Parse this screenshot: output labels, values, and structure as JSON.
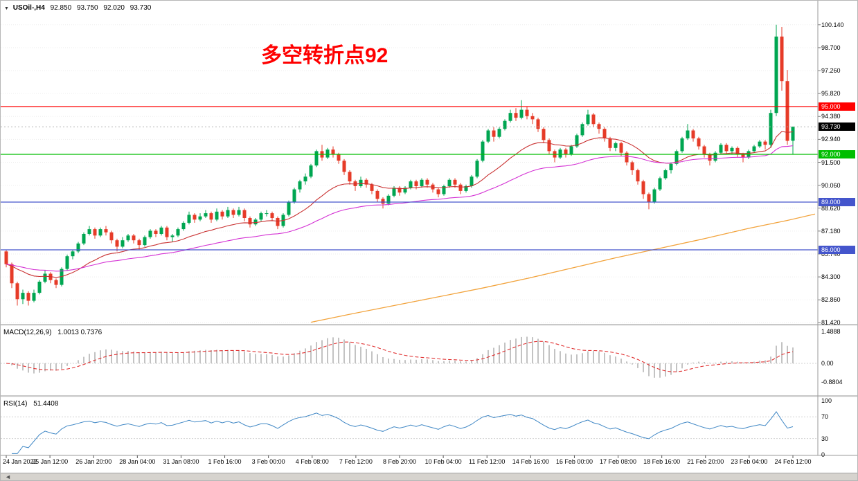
{
  "window": {
    "collapse_icon": "▼",
    "scroll_icon": "◄",
    "symbol_timeframe": "USOil-,H4",
    "open": "92.850",
    "high": "93.750",
    "low": "92.020",
    "close": "93.730"
  },
  "annotation": {
    "text": "多空转折点92",
    "color": "#FF0000"
  },
  "colors": {
    "up_candle": "#00A651",
    "down_candle": "#E63B28",
    "ma_fast": "#C93030",
    "ma_mid": "#D431D4",
    "ma_slow": "#F2A33C",
    "macd_hist": "#B4B4B4",
    "macd_signal": "#E03030",
    "rsi_line": "#3F87C5",
    "current_badge_bg": "#000000",
    "grid": "#EDEDED"
  },
  "chart_data": [
    {
      "type": "candlestick",
      "symbol": "USOil-",
      "timeframe": "H4",
      "y_ticks": [
        "100.140",
        "98.700",
        "97.260",
        "95.820",
        "94.380",
        "92.940",
        "91.500",
        "90.060",
        "88.620",
        "87.180",
        "85.740",
        "84.300",
        "82.860",
        "81.420"
      ],
      "x_labels": [
        "24 Jan 2022",
        "25 Jan 12:00",
        "26 Jan 20:00",
        "28 Jan 04:00",
        "31 Jan 08:00",
        "1 Feb 16:00",
        "3 Feb 00:00",
        "4 Feb 08:00",
        "7 Feb 12:00",
        "8 Feb 20:00",
        "10 Feb 04:00",
        "11 Feb 12:00",
        "14 Feb 16:00",
        "16 Feb 00:00",
        "17 Feb 08:00",
        "18 Feb 16:00",
        "21 Feb 20:00",
        "23 Feb 04:00",
        "24 Feb 12:00"
      ],
      "horizontal_lines": [
        {
          "price": 95.0,
          "label": "95.000",
          "color": "#FF0000"
        },
        {
          "price": 92.0,
          "label": "92.000",
          "color": "#00BE00"
        },
        {
          "price": 89.0,
          "label": "89.000",
          "color": "#4455CC"
        },
        {
          "price": 86.0,
          "label": "86.000",
          "color": "#4455CC"
        }
      ],
      "current_price": {
        "value": 93.73,
        "label": "93.730"
      },
      "moving_averages": [
        {
          "kind": "ema",
          "period": 20,
          "color_key": "ma_fast"
        },
        {
          "kind": "ema",
          "period": 50,
          "color_key": "ma_mid"
        }
      ],
      "trend_ma_points": [
        [
          55,
          81.45
        ],
        [
          62,
          81.95
        ],
        [
          70,
          82.5
        ],
        [
          78,
          83.05
        ],
        [
          86,
          83.6
        ],
        [
          94,
          84.2
        ],
        [
          102,
          84.85
        ],
        [
          110,
          85.5
        ],
        [
          118,
          86.1
        ],
        [
          126,
          86.7
        ],
        [
          134,
          87.35
        ],
        [
          141,
          87.85
        ],
        [
          146,
          88.25
        ]
      ],
      "candles": [
        [
          85.9,
          86.0,
          84.9,
          85.1
        ],
        [
          85.1,
          85.2,
          83.6,
          83.9
        ],
        [
          83.9,
          84.0,
          82.5,
          82.9
        ],
        [
          82.9,
          83.5,
          82.6,
          83.3
        ],
        [
          83.3,
          83.4,
          82.5,
          82.8
        ],
        [
          82.8,
          83.5,
          82.7,
          83.3
        ],
        [
          83.3,
          84.1,
          83.2,
          84.0
        ],
        [
          84.0,
          84.7,
          83.9,
          84.5
        ],
        [
          84.5,
          84.6,
          83.9,
          84.1
        ],
        [
          84.1,
          84.2,
          83.6,
          83.8
        ],
        [
          83.8,
          84.9,
          83.7,
          84.8
        ],
        [
          84.8,
          85.7,
          84.7,
          85.6
        ],
        [
          85.6,
          86.0,
          85.4,
          85.9
        ],
        [
          85.9,
          86.5,
          85.8,
          86.4
        ],
        [
          86.4,
          87.1,
          86.3,
          87.0
        ],
        [
          87.0,
          87.5,
          86.9,
          87.3
        ],
        [
          87.3,
          87.4,
          86.7,
          86.9
        ],
        [
          86.9,
          87.4,
          86.8,
          87.3
        ],
        [
          87.3,
          87.5,
          86.9,
          87.1
        ],
        [
          87.1,
          87.2,
          86.4,
          86.6
        ],
        [
          86.6,
          86.7,
          85.9,
          86.2
        ],
        [
          86.2,
          86.8,
          86.1,
          86.6
        ],
        [
          86.6,
          87.0,
          86.5,
          86.9
        ],
        [
          86.9,
          87.0,
          86.4,
          86.6
        ],
        [
          86.6,
          86.7,
          86.0,
          86.3
        ],
        [
          86.3,
          86.9,
          86.2,
          86.8
        ],
        [
          86.8,
          87.3,
          86.7,
          87.2
        ],
        [
          87.2,
          87.3,
          86.8,
          87.0
        ],
        [
          87.0,
          87.5,
          86.9,
          87.4
        ],
        [
          87.4,
          87.5,
          86.6,
          86.8
        ],
        [
          86.8,
          87.0,
          86.5,
          86.9
        ],
        [
          86.9,
          87.4,
          86.8,
          87.3
        ],
        [
          87.3,
          87.8,
          87.2,
          87.7
        ],
        [
          87.7,
          88.4,
          87.6,
          88.2
        ],
        [
          88.2,
          88.3,
          87.7,
          87.9
        ],
        [
          87.9,
          88.3,
          87.8,
          88.1
        ],
        [
          88.1,
          88.5,
          88.0,
          88.3
        ],
        [
          88.3,
          88.4,
          87.7,
          87.9
        ],
        [
          87.9,
          88.6,
          87.8,
          88.4
        ],
        [
          88.4,
          88.5,
          87.9,
          88.1
        ],
        [
          88.1,
          88.7,
          88.0,
          88.5
        ],
        [
          88.5,
          88.6,
          88.0,
          88.2
        ],
        [
          88.2,
          88.7,
          88.1,
          88.5
        ],
        [
          88.5,
          88.6,
          87.8,
          88.0
        ],
        [
          88.0,
          88.1,
          87.4,
          87.6
        ],
        [
          87.6,
          88.0,
          87.5,
          87.9
        ],
        [
          87.9,
          88.4,
          87.8,
          88.3
        ],
        [
          88.3,
          88.5,
          88.1,
          88.3
        ],
        [
          88.3,
          88.4,
          87.8,
          88.0
        ],
        [
          88.0,
          88.1,
          87.3,
          87.5
        ],
        [
          87.5,
          88.3,
          87.4,
          88.2
        ],
        [
          88.2,
          89.1,
          88.1,
          89.0
        ],
        [
          89.0,
          89.9,
          88.9,
          89.8
        ],
        [
          89.8,
          90.4,
          89.6,
          90.3
        ],
        [
          90.3,
          90.8,
          90.1,
          90.6
        ],
        [
          90.6,
          91.4,
          90.5,
          91.3
        ],
        [
          91.3,
          92.3,
          91.2,
          92.2
        ],
        [
          92.2,
          92.6,
          91.6,
          91.8
        ],
        [
          91.8,
          92.4,
          91.7,
          92.3
        ],
        [
          92.3,
          92.5,
          91.8,
          92.0
        ],
        [
          92.0,
          92.1,
          91.4,
          91.6
        ],
        [
          91.6,
          91.7,
          90.7,
          90.9
        ],
        [
          90.9,
          91.0,
          90.1,
          90.3
        ],
        [
          90.3,
          90.4,
          89.7,
          90.0
        ],
        [
          90.0,
          90.6,
          89.9,
          90.4
        ],
        [
          90.4,
          90.5,
          89.9,
          90.1
        ],
        [
          90.1,
          90.2,
          89.5,
          89.7
        ],
        [
          89.7,
          89.8,
          89.0,
          89.2
        ],
        [
          89.2,
          89.3,
          88.6,
          88.9
        ],
        [
          88.9,
          89.5,
          88.8,
          89.4
        ],
        [
          89.4,
          90.0,
          89.3,
          89.9
        ],
        [
          89.9,
          90.0,
          89.4,
          89.6
        ],
        [
          89.6,
          90.0,
          89.5,
          89.9
        ],
        [
          89.9,
          90.4,
          89.8,
          90.3
        ],
        [
          90.3,
          90.4,
          89.8,
          90.0
        ],
        [
          90.0,
          90.5,
          89.9,
          90.4
        ],
        [
          90.4,
          90.5,
          89.9,
          90.1
        ],
        [
          90.1,
          90.2,
          89.6,
          89.8
        ],
        [
          89.8,
          89.9,
          89.3,
          89.5
        ],
        [
          89.5,
          90.1,
          89.4,
          90.0
        ],
        [
          90.0,
          90.5,
          89.9,
          90.4
        ],
        [
          90.4,
          90.5,
          89.9,
          90.1
        ],
        [
          90.1,
          90.2,
          89.5,
          89.7
        ],
        [
          89.7,
          90.1,
          89.6,
          90.0
        ],
        [
          90.0,
          90.7,
          89.9,
          90.6
        ],
        [
          90.6,
          91.7,
          90.5,
          91.6
        ],
        [
          91.6,
          92.9,
          91.5,
          92.8
        ],
        [
          92.8,
          93.6,
          92.7,
          93.5
        ],
        [
          93.5,
          93.7,
          92.8,
          93.1
        ],
        [
          93.1,
          93.7,
          93.0,
          93.6
        ],
        [
          93.6,
          94.2,
          93.5,
          94.1
        ],
        [
          94.1,
          94.8,
          94.0,
          94.6
        ],
        [
          94.6,
          94.9,
          94.1,
          94.3
        ],
        [
          94.3,
          95.4,
          94.2,
          94.8
        ],
        [
          94.8,
          95.0,
          94.2,
          94.4
        ],
        [
          94.4,
          94.6,
          93.9,
          94.2
        ],
        [
          94.2,
          94.3,
          93.4,
          93.6
        ],
        [
          93.6,
          93.7,
          92.7,
          92.9
        ],
        [
          92.9,
          93.0,
          92.0,
          92.2
        ],
        [
          92.2,
          92.3,
          91.5,
          91.8
        ],
        [
          91.8,
          92.4,
          91.7,
          92.3
        ],
        [
          92.3,
          92.4,
          91.8,
          92.0
        ],
        [
          92.0,
          92.6,
          91.9,
          92.5
        ],
        [
          92.5,
          93.3,
          92.4,
          93.2
        ],
        [
          93.2,
          94.0,
          93.1,
          93.9
        ],
        [
          93.9,
          94.8,
          93.8,
          94.5
        ],
        [
          94.5,
          94.6,
          93.7,
          93.9
        ],
        [
          93.9,
          94.0,
          93.3,
          93.6
        ],
        [
          93.6,
          93.7,
          92.8,
          93.0
        ],
        [
          93.0,
          93.1,
          92.2,
          92.4
        ],
        [
          92.4,
          92.8,
          92.2,
          92.7
        ],
        [
          92.7,
          92.8,
          91.9,
          92.1
        ],
        [
          92.1,
          92.2,
          91.3,
          91.5
        ],
        [
          91.5,
          91.6,
          90.7,
          91.0
        ],
        [
          91.0,
          91.1,
          90.1,
          90.3
        ],
        [
          90.3,
          90.4,
          89.2,
          89.5
        ],
        [
          89.5,
          89.6,
          88.55,
          89.0
        ],
        [
          89.0,
          89.9,
          88.9,
          89.8
        ],
        [
          89.8,
          90.6,
          89.7,
          90.5
        ],
        [
          90.5,
          91.1,
          90.4,
          91.0
        ],
        [
          91.0,
          91.5,
          90.8,
          91.4
        ],
        [
          91.4,
          92.3,
          91.3,
          92.2
        ],
        [
          92.2,
          93.1,
          92.1,
          93.0
        ],
        [
          93.0,
          93.9,
          92.9,
          93.5
        ],
        [
          93.5,
          93.6,
          92.8,
          93.0
        ],
        [
          93.0,
          93.1,
          92.3,
          92.5
        ],
        [
          92.5,
          92.6,
          91.8,
          92.0
        ],
        [
          92.0,
          92.1,
          91.3,
          91.6
        ],
        [
          91.6,
          92.2,
          91.5,
          92.1
        ],
        [
          92.1,
          92.7,
          92.0,
          92.6
        ],
        [
          92.6,
          92.7,
          92.0,
          92.2
        ],
        [
          92.2,
          92.5,
          92.0,
          92.4
        ],
        [
          92.4,
          92.5,
          91.8,
          92.0
        ],
        [
          92.0,
          92.1,
          91.5,
          91.8
        ],
        [
          91.8,
          92.3,
          91.7,
          92.2
        ],
        [
          92.2,
          92.6,
          92.1,
          92.5
        ],
        [
          92.5,
          92.9,
          92.4,
          92.8
        ],
        [
          92.8,
          92.9,
          92.3,
          92.6
        ],
        [
          92.6,
          94.8,
          92.4,
          94.6
        ],
        [
          94.6,
          100.14,
          94.4,
          99.4
        ],
        [
          99.4,
          100.0,
          96.0,
          96.6
        ],
        [
          96.6,
          97.3,
          92.6,
          92.85
        ],
        [
          92.85,
          93.75,
          92.02,
          93.73
        ]
      ]
    },
    {
      "type": "bar",
      "name": "MACD",
      "label": "MACD(12,26,9)",
      "values_text": "1.0013 0.7376",
      "scale_labels": [
        "1.4888",
        "0.00",
        "-0.8804"
      ],
      "scale_values": [
        1.4888,
        0,
        -0.8804
      ],
      "fast": 12,
      "slow": 26,
      "signal": 9
    },
    {
      "type": "line",
      "name": "RSI",
      "label": "RSI(14)",
      "values_text": "51.4408",
      "scale_labels": [
        "100",
        "70",
        "30",
        "0"
      ],
      "scale_values": [
        100,
        70,
        30,
        0
      ],
      "period": 14,
      "levels": [
        70,
        30
      ]
    }
  ]
}
